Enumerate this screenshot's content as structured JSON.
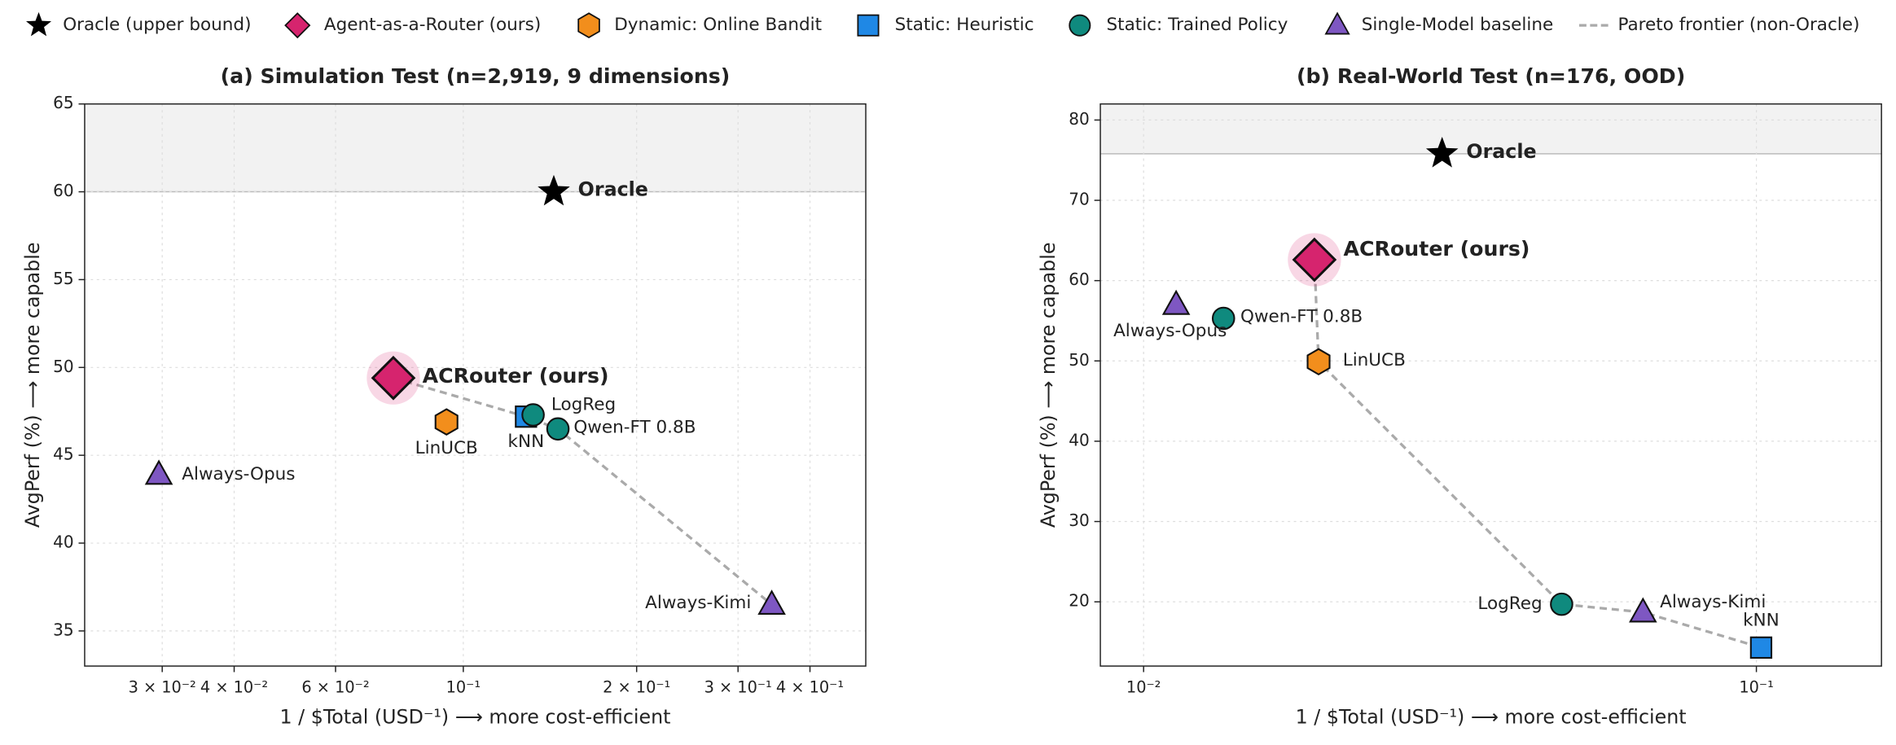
{
  "legend": {
    "items": [
      {
        "name": "Oracle (upper bound)",
        "marker": "star",
        "color": "#000000"
      },
      {
        "name": "Agent-as-a-Router (ours)",
        "marker": "diamond",
        "color": "#d6246e"
      },
      {
        "name": "Dynamic: Online Bandit",
        "marker": "hexagon",
        "color": "#f28e1c"
      },
      {
        "name": "Static: Heuristic",
        "marker": "square",
        "color": "#1f88e5"
      },
      {
        "name": "Static: Trained Policy",
        "marker": "circle",
        "color": "#0f8a7e"
      },
      {
        "name": "Single-Model baseline",
        "marker": "triangle",
        "color": "#7e57c2"
      },
      {
        "name": "Pareto frontier (non-Oracle)",
        "marker": "dashed",
        "color": "#aaaaaa"
      }
    ]
  },
  "chart_data": [
    {
      "type": "scatter",
      "title": "(a) Simulation Test (n=2,919, 9 dimensions)",
      "x_label": "1 / $Total  (USD⁻¹)  ⟶  more cost-efficient",
      "y_label": "AvgPerf (%)  ⟶  more capable",
      "xscale": "log",
      "grid": true,
      "xlim": [
        0.022,
        0.5
      ],
      "xticks": [
        {
          "value": 0.03,
          "label": "3 × 10⁻²"
        },
        {
          "value": 0.04,
          "label": "4 × 10⁻²"
        },
        {
          "value": 0.06,
          "label": "6 × 10⁻²"
        },
        {
          "value": 0.1,
          "label": "10⁻¹"
        },
        {
          "value": 0.2,
          "label": "2 × 10⁻¹"
        },
        {
          "value": 0.3,
          "label": "3 × 10⁻¹"
        },
        {
          "value": 0.4,
          "label": "4 × 10⁻¹"
        }
      ],
      "ylim": [
        33,
        65
      ],
      "yticks": [
        35,
        40,
        45,
        50,
        55,
        60,
        65
      ],
      "series": [
        {
          "name": "Oracle",
          "marker": "star",
          "color": "#000000",
          "x": [
            0.1436
          ],
          "values": [
            60
          ]
        },
        {
          "name": "ACRouter (ours)",
          "marker": "diamond",
          "color": "#d6246e",
          "x": [
            0.0756
          ],
          "values": [
            49.4
          ]
        },
        {
          "name": "LinUCB",
          "marker": "hexagon",
          "color": "#f28e1c",
          "x": [
            0.0935
          ],
          "values": [
            46.9
          ]
        },
        {
          "name": "kNN",
          "marker": "square",
          "color": "#1f88e5",
          "x": [
            0.1285
          ],
          "values": [
            47.2
          ]
        },
        {
          "name": "LogReg",
          "marker": "circle",
          "color": "#0f8a7e",
          "x": [
            0.1322
          ],
          "values": [
            47.3
          ]
        },
        {
          "name": "Qwen-FT 0.8B",
          "marker": "circle",
          "color": "#0f8a7e",
          "x": [
            0.146
          ],
          "values": [
            46.5
          ]
        },
        {
          "name": "Always-Opus",
          "marker": "triangle",
          "color": "#7e57c2",
          "x": [
            0.0296
          ],
          "values": [
            43.9
          ]
        },
        {
          "name": "Always-Kimi",
          "marker": "triangle",
          "color": "#7e57c2",
          "x": [
            0.3433
          ],
          "values": [
            36.5
          ]
        }
      ],
      "frontier": {
        "x": [
          0.0756,
          0.1285,
          0.146,
          0.3433
        ],
        "values": [
          49.4,
          47.2,
          46.5,
          36.5
        ]
      }
    },
    {
      "type": "scatter",
      "title": "(b) Real-World Test (n=176, OOD)",
      "x_label": "1 / $Total  (USD⁻¹)  ⟶  more cost-efficient",
      "y_label": "AvgPerf (%)  ⟶  more capable",
      "xscale": "log",
      "grid": true,
      "xlim": [
        0.0085,
        0.16
      ],
      "xticks": [
        {
          "value": 0.01,
          "label": "10⁻²"
        },
        {
          "value": 0.1,
          "label": "10⁻¹"
        }
      ],
      "ylim": [
        12,
        82
      ],
      "yticks": [
        20,
        30,
        40,
        50,
        60,
        70,
        80
      ],
      "series": [
        {
          "name": "Oracle",
          "marker": "star",
          "color": "#000000",
          "x": [
            0.0307
          ],
          "values": [
            75.8
          ]
        },
        {
          "name": "ACRouter (ours)",
          "marker": "diamond",
          "color": "#d6246e",
          "x": [
            0.019
          ],
          "values": [
            62.6
          ]
        },
        {
          "name": "LinUCB",
          "marker": "hexagon",
          "color": "#f28e1c",
          "x": [
            0.0193
          ],
          "values": [
            49.9
          ]
        },
        {
          "name": "Qwen-FT 0.8B",
          "marker": "circle",
          "color": "#0f8a7e",
          "x": [
            0.0135
          ],
          "values": [
            55.3
          ]
        },
        {
          "name": "Always-Opus",
          "marker": "triangle",
          "color": "#7e57c2",
          "x": [
            0.0113
          ],
          "values": [
            57
          ]
        },
        {
          "name": "LogReg",
          "marker": "circle",
          "color": "#0f8a7e",
          "x": [
            0.0481
          ],
          "values": [
            19.7
          ]
        },
        {
          "name": "Always-Kimi",
          "marker": "triangle",
          "color": "#7e57c2",
          "x": [
            0.0653
          ],
          "values": [
            18.7
          ]
        },
        {
          "name": "kNN",
          "marker": "square",
          "color": "#1f88e5",
          "x": [
            0.1018
          ],
          "values": [
            14.3
          ]
        }
      ],
      "frontier": {
        "x": [
          0.019,
          0.0193,
          0.0481,
          0.0653,
          0.1018
        ],
        "values": [
          62.6,
          49.9,
          19.7,
          18.7,
          14.3
        ]
      }
    }
  ]
}
